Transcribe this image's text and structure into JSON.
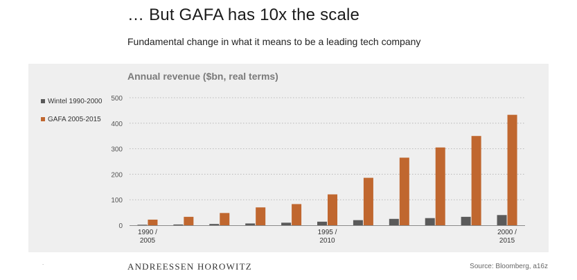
{
  "header": {
    "title": "… But GAFA has 10x the scale",
    "subtitle": "Fundamental change in what it means to be a leading tech company"
  },
  "footer": {
    "logo_text": "ANDREESSEN HOROWITZ",
    "source": "Source: Bloomberg, a16z",
    "dot": "."
  },
  "colors": {
    "wintel": "#5a5a5a",
    "gafa": "#c0672f",
    "panel": "#efefef"
  },
  "chart_data": {
    "type": "bar",
    "title": "Annual revenue ($bn, real terms)",
    "xlabel": "",
    "ylabel": "",
    "ylim": [
      0,
      500
    ],
    "yticks": [
      0,
      100,
      200,
      300,
      400,
      500
    ],
    "grid": true,
    "legend_position": "left",
    "categories": [
      "1990 / 2005",
      "",
      "",
      "",
      "",
      "1995 / 2010",
      "",
      "",
      "",
      "",
      "2000 / 2015"
    ],
    "tick_labels": [
      {
        "index": 0,
        "line1": "1990 /",
        "line2": "2005"
      },
      {
        "index": 5,
        "line1": "1995 /",
        "line2": "2010"
      },
      {
        "index": 10,
        "line1": "2000 /",
        "line2": "2015"
      }
    ],
    "series": [
      {
        "name": "Wintel 1990-2000",
        "color": "#5a5a5a",
        "values": [
          2,
          3,
          5,
          7,
          10,
          14,
          20,
          25,
          28,
          33,
          40
        ]
      },
      {
        "name": "GAFA 2005-2015",
        "color": "#c0672f",
        "values": [
          22,
          33,
          48,
          70,
          83,
          121,
          186,
          265,
          305,
          350,
          433
        ]
      }
    ]
  }
}
